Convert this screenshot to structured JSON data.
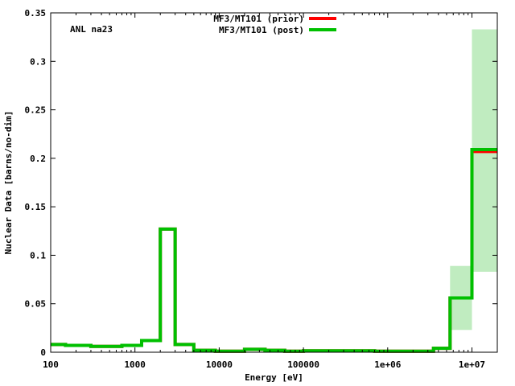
{
  "chart_data": {
    "type": "line",
    "annotation": "ANL na23",
    "xlabel": "Energy [eV]",
    "ylabel": "Nuclear Data [barns/no-dim]",
    "xscale": "log",
    "xlim": [
      100,
      20000000
    ],
    "ylim": [
      0,
      0.35
    ],
    "grid": false,
    "legend_position": "top-center",
    "xticks": [
      {
        "value": 100,
        "label": "100"
      },
      {
        "value": 1000,
        "label": "1000"
      },
      {
        "value": 10000,
        "label": "10000"
      },
      {
        "value": 100000,
        "label": "100000"
      },
      {
        "value": 1000000,
        "label": "1e+06"
      },
      {
        "value": 10000000,
        "label": "1e+07"
      }
    ],
    "yticks": [
      {
        "value": 0,
        "label": "0"
      },
      {
        "value": 0.05,
        "label": "0.05"
      },
      {
        "value": 0.1,
        "label": "0.1"
      },
      {
        "value": 0.15,
        "label": "0.15"
      },
      {
        "value": 0.2,
        "label": "0.2"
      },
      {
        "value": 0.25,
        "label": "0.25"
      },
      {
        "value": 0.3,
        "label": "0.3"
      },
      {
        "value": 0.35,
        "label": "0.35"
      }
    ],
    "bin_edges": [
      100,
      150,
      300,
      700,
      1200,
      2000,
      3000,
      5000,
      9000,
      20000,
      35000,
      60000,
      100000,
      400000,
      700000,
      3500000,
      5500000,
      10000000,
      20000000
    ],
    "series": [
      {
        "name": "MF3/MT101 (prior)",
        "color": "#ff0000",
        "values": [
          0.008,
          0.007,
          0.006,
          0.007,
          0.012,
          0.127,
          0.008,
          0.002,
          0.001,
          0.003,
          0.002,
          0.001,
          0.0015,
          0.0015,
          0.001,
          0.004,
          0.056,
          0.207
        ]
      },
      {
        "name": "MF3/MT101 (post)",
        "color": "#00c000",
        "values": [
          0.008,
          0.007,
          0.006,
          0.007,
          0.012,
          0.127,
          0.008,
          0.002,
          0.001,
          0.003,
          0.002,
          0.001,
          0.0015,
          0.0015,
          0.001,
          0.004,
          0.056,
          0.209
        ]
      }
    ],
    "uncertainty_band": {
      "color": "#c0ecc0",
      "lower": [
        0.008,
        0.007,
        0.006,
        0.007,
        0.012,
        0.127,
        0.008,
        0.002,
        0.001,
        0.003,
        0.002,
        0.001,
        0.0015,
        0.0015,
        0.001,
        0.004,
        0.023,
        0.083
      ],
      "upper": [
        0.008,
        0.007,
        0.006,
        0.007,
        0.012,
        0.127,
        0.008,
        0.002,
        0.001,
        0.003,
        0.002,
        0.001,
        0.0015,
        0.0015,
        0.001,
        0.004,
        0.089,
        0.333
      ]
    }
  }
}
